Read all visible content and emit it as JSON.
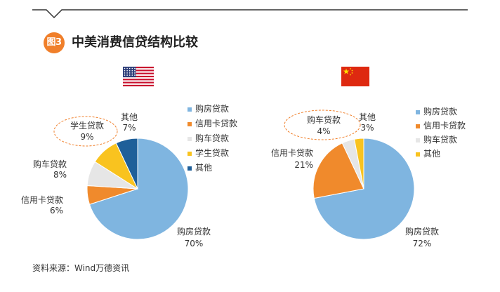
{
  "figure": {
    "badge": "图3",
    "title": "中美消费信贷结构比较",
    "source": "资料来源：Wind万德资讯"
  },
  "colors": {
    "badge": "#f07f2a",
    "header_line": "#333333",
    "highlight_ellipse": "#f07f2a",
    "mortgage": "#7fb5e0",
    "credit_card": "#f08a2c",
    "auto": "#e6e6e6",
    "student": "#f9c31f",
    "other_us": "#1f5f99",
    "other_cn": "#f9c31f"
  },
  "flags": {
    "us": "united-states-flag",
    "cn": "china-flag"
  },
  "chart_data": [
    {
      "type": "pie",
      "title": "",
      "flag": "us",
      "legend": [
        "购房贷款",
        "信用卡贷款",
        "购车贷款",
        "学生贷款",
        "其他"
      ],
      "slices": [
        {
          "name": "购房贷款",
          "value": 70,
          "label": "购房贷款",
          "pct": "70%",
          "color": "#7fb5e0"
        },
        {
          "name": "信用卡贷款",
          "value": 6,
          "label": "信用卡贷款",
          "pct": "6%",
          "color": "#f08a2c"
        },
        {
          "name": "购车贷款",
          "value": 8,
          "label": "购车贷款",
          "pct": "8%",
          "color": "#e6e6e6"
        },
        {
          "name": "学生贷款",
          "value": 9,
          "label": "学生贷款",
          "pct": "9%",
          "color": "#f9c31f",
          "highlight": true
        },
        {
          "name": "其他",
          "value": 7,
          "label": "其他",
          "pct": "7%",
          "color": "#1f5f99"
        }
      ]
    },
    {
      "type": "pie",
      "title": "",
      "flag": "cn",
      "legend": [
        "购房贷款",
        "信用卡贷款",
        "购车贷款",
        "其他"
      ],
      "slices": [
        {
          "name": "购房贷款",
          "value": 72,
          "label": "购房贷款",
          "pct": "72%",
          "color": "#7fb5e0"
        },
        {
          "name": "信用卡贷款",
          "value": 21,
          "label": "信用卡贷款",
          "pct": "21%",
          "color": "#f08a2c"
        },
        {
          "name": "购车贷款",
          "value": 4,
          "label": "购车贷款",
          "pct": "4%",
          "color": "#e6e6e6",
          "highlight": true
        },
        {
          "name": "其他",
          "value": 3,
          "label": "其他",
          "pct": "3%",
          "color": "#f9c31f"
        }
      ]
    }
  ]
}
